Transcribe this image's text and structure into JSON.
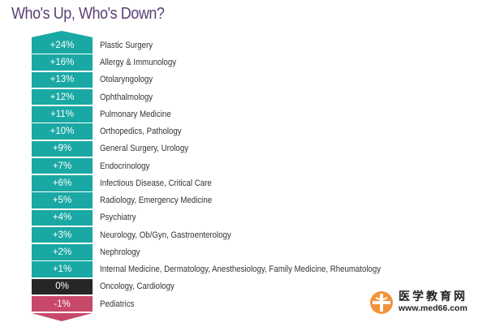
{
  "title": "Who's Up, Who's Down?",
  "colors": {
    "positive": "#1aa8a4",
    "zero": "#262626",
    "negative": "#c8486a",
    "title": "#5a3f78"
  },
  "chart_data": {
    "type": "table",
    "title": "Who's Up, Who's Down?",
    "rows": [
      {
        "value": "+24%",
        "change": 24,
        "label": "Plastic Surgery"
      },
      {
        "value": "+16%",
        "change": 16,
        "label": "Allergy & Immunology"
      },
      {
        "value": "+13%",
        "change": 13,
        "label": "Otolaryngology"
      },
      {
        "value": "+12%",
        "change": 12,
        "label": "Ophthalmology"
      },
      {
        "value": "+11%",
        "change": 11,
        "label": "Pulmonary Medicine"
      },
      {
        "value": "+10%",
        "change": 10,
        "label": "Orthopedics, Pathology"
      },
      {
        "value": "+9%",
        "change": 9,
        "label": "General Surgery, Urology"
      },
      {
        "value": "+7%",
        "change": 7,
        "label": "Endocrinology"
      },
      {
        "value": "+6%",
        "change": 6,
        "label": "Infectious Disease, Critical Care"
      },
      {
        "value": "+5%",
        "change": 5,
        "label": "Radiology, Emergency Medicine"
      },
      {
        "value": "+4%",
        "change": 4,
        "label": "Psychiatry"
      },
      {
        "value": "+3%",
        "change": 3,
        "label": "Neurology, Ob/Gyn, Gastroenterology"
      },
      {
        "value": "+2%",
        "change": 2,
        "label": "Nephrology"
      },
      {
        "value": "+1%",
        "change": 1,
        "label": "Internal Medicine, Dermatology, Anesthesiology, Family Medicine, Rheumatology"
      },
      {
        "value": "0%",
        "change": 0,
        "label": "Oncology, Cardiology"
      },
      {
        "value": "-1%",
        "change": -1,
        "label": "Pediatrics"
      }
    ]
  },
  "watermark": {
    "name": "医学教育网",
    "url": "www.med66.com"
  }
}
